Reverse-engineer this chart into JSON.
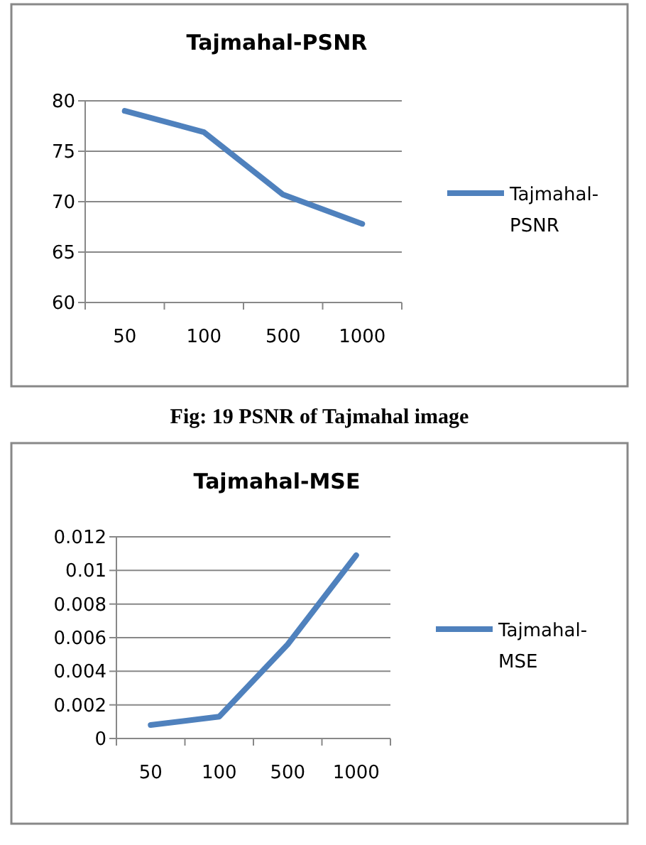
{
  "chart_data": [
    {
      "type": "line",
      "title": "Tajmahal-PSNR",
      "categories": [
        "50",
        "100",
        "500",
        "1000"
      ],
      "series": [
        {
          "name": "Tajmahal-PSNR",
          "color": "#4f81bd",
          "values": [
            79,
            76.9,
            70.7,
            67.8
          ]
        }
      ],
      "ylim": [
        60,
        80
      ],
      "yticks": [
        60,
        65,
        70,
        75,
        80
      ],
      "grid": "y",
      "legend": "right",
      "annotations": [
        "Fig: 19 PSNR of Tajmahal image"
      ]
    },
    {
      "type": "line",
      "title": "Tajmahal-MSE",
      "categories": [
        "50",
        "100",
        "500",
        "1000"
      ],
      "series": [
        {
          "name": "Tajmahal-MSE",
          "color": "#4f81bd",
          "values": [
            0.0008,
            0.0013,
            0.0056,
            0.0109
          ]
        }
      ],
      "ylim": [
        0,
        0.012
      ],
      "yticks": [
        0,
        0.002,
        0.004,
        0.006,
        0.008,
        0.01,
        0.012
      ],
      "grid": "y",
      "legend": "right"
    }
  ]
}
